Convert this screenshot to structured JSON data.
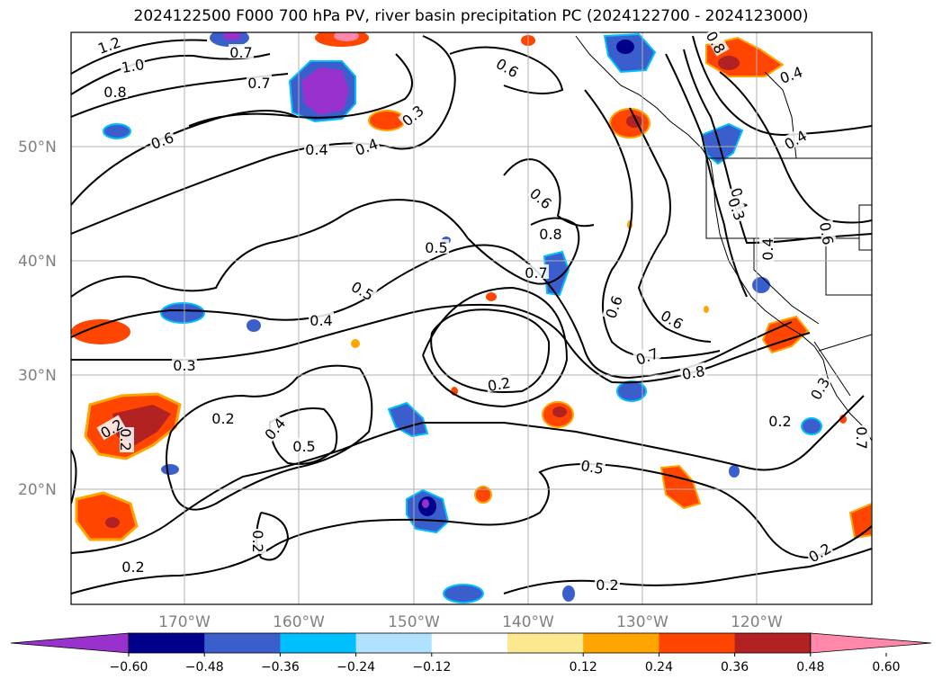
{
  "title": "2024122500 F000 700 hPa PV, river basin precipitation PC (2024122700 - 2024123000)",
  "lat_labels": [
    "50°N",
    "40°N",
    "30°N",
    "20°N"
  ],
  "lon_labels": [
    "170°W",
    "160°W",
    "150°W",
    "140°W",
    "130°W",
    "120°W"
  ],
  "contour_labels": [
    "1.2",
    "1.0",
    "0.8",
    "0.7",
    "0.7",
    "0.6",
    "0.4",
    "0.4",
    "0.3",
    "0.6",
    "0.8",
    "0.4",
    "0.4",
    "0.6",
    "0.5",
    "0.5",
    "0.8",
    "0.7",
    "0.6",
    "0.6",
    "0.4",
    "0.4",
    "0.4",
    "0.3",
    "0.2",
    "0.2",
    "0.4",
    "0.5",
    "0.6",
    "0.7",
    "0.8",
    "0.5",
    "0.2",
    "0.2",
    "0.2",
    "0.2",
    "0.2",
    "0.2",
    "0.2",
    "0.3",
    "0.7",
    "0.3"
  ],
  "colorbar": {
    "ticks": [
      "−0.60",
      "−0.48",
      "−0.36",
      "−0.24",
      "−0.12",
      "0.12",
      "0.24",
      "0.36",
      "0.48",
      "0.60"
    ],
    "colors": [
      "#9932cc",
      "#00008b",
      "#3a5fcd",
      "#00bfff",
      "#b0e2ff",
      "#ffffff",
      "#fce98f",
      "#ffa500",
      "#ff4500",
      "#b22222",
      "#ff88aa"
    ]
  }
}
